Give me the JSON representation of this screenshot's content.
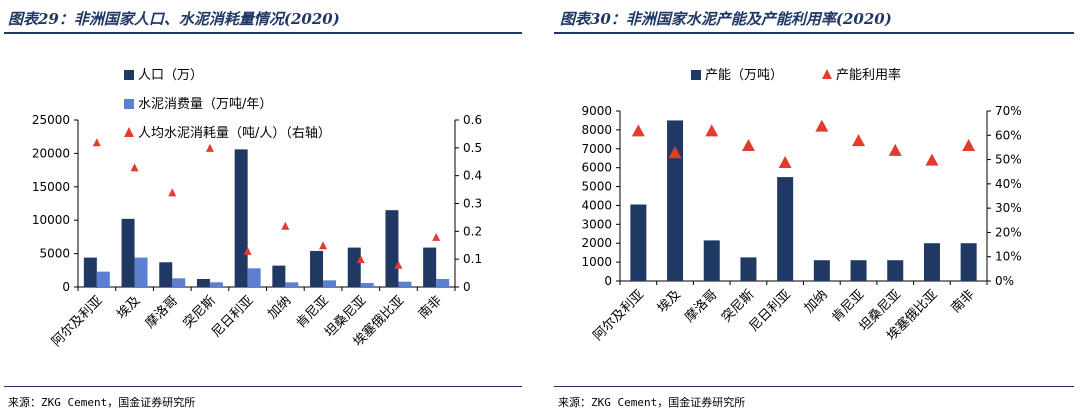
{
  "left": {
    "title": "图表29：非洲国家人口、水泥消耗量情况(2020)",
    "source": "来源：ZKG Cement，国金证券研究所",
    "chart_data": {
      "type": "bar",
      "categories": [
        "阿尔及利亚",
        "埃及",
        "摩洛哥",
        "突尼斯",
        "尼日利亚",
        "加纳",
        "肯尼亚",
        "坦桑尼亚",
        "埃塞俄比亚",
        "南非"
      ],
      "series": [
        {
          "name": "人口（万）",
          "kind": "bar",
          "axis": "left",
          "color": "#1f3864",
          "values": [
            4400,
            10200,
            3700,
            1200,
            20600,
            3200,
            5400,
            5900,
            11500,
            5900
          ]
        },
        {
          "name": "水泥消费量（万吨/年）",
          "kind": "bar",
          "axis": "left",
          "color": "#5b7fd1",
          "values": [
            2300,
            4400,
            1300,
            700,
            2800,
            700,
            1000,
            600,
            800,
            1200
          ]
        },
        {
          "name": "人均水泥消耗量（吨/人）（右轴）",
          "kind": "marker",
          "axis": "right",
          "color": "#e23c2f",
          "values": [
            0.52,
            0.43,
            0.34,
            0.5,
            0.13,
            0.22,
            0.15,
            0.1,
            0.08,
            0.18
          ]
        }
      ],
      "yleft": {
        "min": 0,
        "max": 25000,
        "ticks": [
          0,
          5000,
          10000,
          15000,
          20000,
          25000
        ],
        "labels": [
          "0",
          "5000",
          "10000",
          "15000",
          "20000",
          "25000"
        ]
      },
      "yright": {
        "min": 0,
        "max": 0.6,
        "ticks": [
          0,
          0.1,
          0.2,
          0.3,
          0.4,
          0.5,
          0.6
        ],
        "labels": [
          "0",
          "0.1",
          "0.2",
          "0.3",
          "0.4",
          "0.5",
          "0.6"
        ]
      },
      "legend_position": "top-left"
    }
  },
  "right": {
    "title": "图表30：非洲国家水泥产能及产能利用率(2020)",
    "source": "来源：ZKG Cement，国金证券研究所",
    "chart_data": {
      "type": "bar",
      "categories": [
        "阿尔及利亚",
        "埃及",
        "摩洛哥",
        "突尼斯",
        "尼日利亚",
        "加纳",
        "肯尼亚",
        "坦桑尼亚",
        "埃塞俄比亚",
        "南非"
      ],
      "series": [
        {
          "name": "产能（万吨）",
          "kind": "bar",
          "axis": "left",
          "color": "#1f3864",
          "values": [
            4050,
            8500,
            2150,
            1250,
            5500,
            1100,
            1100,
            1100,
            2000,
            2000
          ]
        },
        {
          "name": "产能利用率",
          "kind": "marker",
          "axis": "right",
          "color": "#e23c2f",
          "values": [
            0.62,
            0.53,
            0.62,
            0.56,
            0.49,
            0.64,
            0.58,
            0.54,
            0.5,
            0.56
          ]
        }
      ],
      "yleft": {
        "min": 0,
        "max": 9000,
        "ticks": [
          0,
          1000,
          2000,
          3000,
          4000,
          5000,
          6000,
          7000,
          8000,
          9000
        ],
        "labels": [
          "0",
          "1000",
          "2000",
          "3000",
          "4000",
          "5000",
          "6000",
          "7000",
          "8000",
          "9000"
        ]
      },
      "yright": {
        "min": 0,
        "max": 0.7,
        "ticks": [
          0,
          0.1,
          0.2,
          0.3,
          0.4,
          0.5,
          0.6,
          0.7
        ],
        "labels": [
          "0%",
          "10%",
          "20%",
          "30%",
          "40%",
          "50%",
          "60%",
          "70%"
        ]
      },
      "legend_position": "top"
    }
  }
}
